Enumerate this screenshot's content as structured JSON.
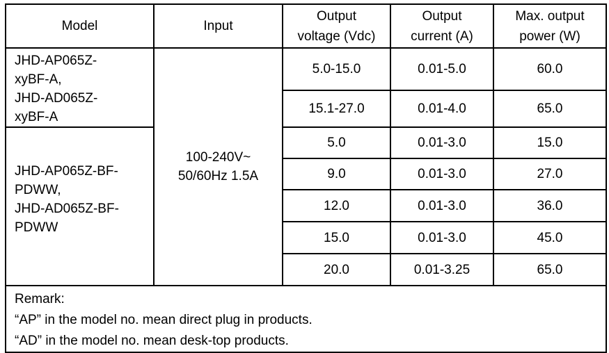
{
  "table": {
    "headers": [
      "Model",
      "Input",
      "Output voltage (Vdc)",
      "Output current (A)",
      "Max. output power (W)"
    ],
    "header_lines": [
      [
        "Model"
      ],
      [
        "Input"
      ],
      [
        "Output",
        "voltage (Vdc)"
      ],
      [
        "Output",
        "current (A)"
      ],
      [
        "Max. output",
        "power (W)"
      ]
    ],
    "input": [
      "100-240V~",
      "50/60Hz 1.5A"
    ],
    "groups": [
      {
        "model_lines": [
          "JHD-AP065Z-",
          "xyBF-A,",
          "JHD-AD065Z-",
          "xyBF-A"
        ],
        "rows": [
          {
            "voltage": "5.0-15.0",
            "current": "0.01-5.0",
            "power": "60.0"
          },
          {
            "voltage": "15.1-27.0",
            "current": "0.01-4.0",
            "power": "65.0"
          }
        ]
      },
      {
        "model_lines": [
          "JHD-AP065Z-BF-",
          "PDWW,",
          "JHD-AD065Z-BF-",
          "PDWW"
        ],
        "rows": [
          {
            "voltage": "5.0",
            "current": "0.01-3.0",
            "power": "15.0"
          },
          {
            "voltage": "9.0",
            "current": "0.01-3.0",
            "power": "27.0"
          },
          {
            "voltage": "12.0",
            "current": "0.01-3.0",
            "power": "36.0"
          },
          {
            "voltage": "15.0",
            "current": "0.01-3.0",
            "power": "45.0"
          },
          {
            "voltage": "20.0",
            "current": "0.01-3.25",
            "power": "65.0"
          }
        ]
      }
    ],
    "remark": [
      "Remark:",
      "“AP” in the model no. mean direct plug in products.",
      "“AD” in the model no. mean desk-top products."
    ]
  }
}
